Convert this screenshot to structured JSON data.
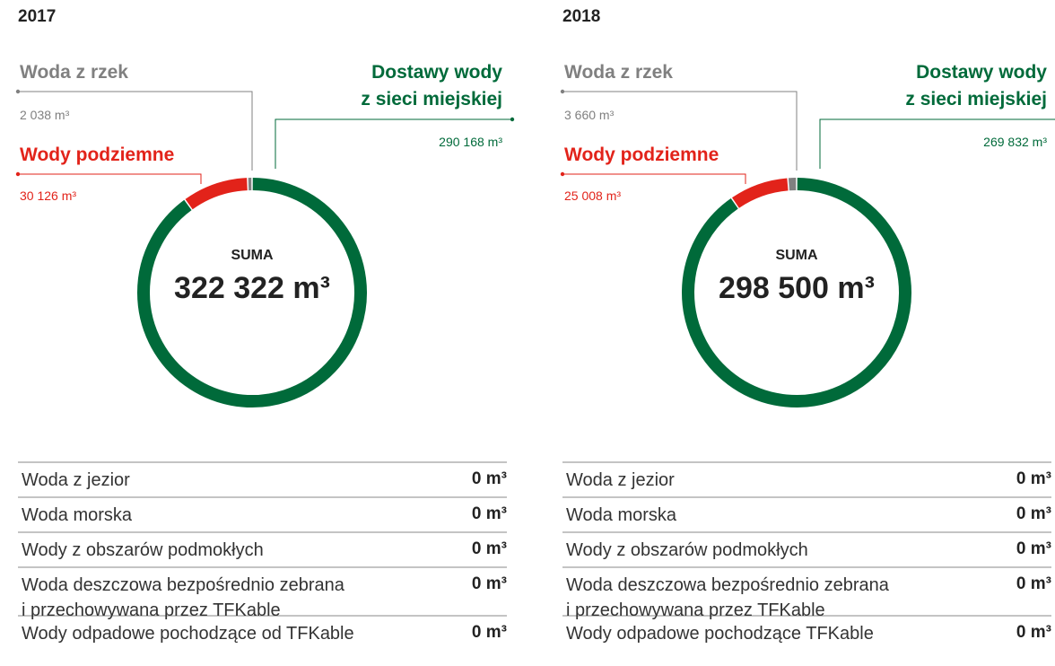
{
  "chart_data": [
    {
      "type": "pie",
      "title": "2017",
      "categories": [
        "Dostawy wody\nz sieci miejskiej",
        "Wody podziemne",
        "Woda z rzek"
      ],
      "values": [
        290168,
        30126,
        2038
      ],
      "value_labels": [
        "290 168 m³",
        "30 126 m³",
        "2 038 m³"
      ],
      "colors": [
        "#006a3a",
        "#e2231a",
        "#808080"
      ],
      "center_label": "SUMA",
      "total": {
        "value": 322322,
        "label": "322 322 m³"
      },
      "table": {
        "rows": [
          [
            "Woda z jezior",
            "0 m³"
          ],
          [
            "Woda morska",
            "0 m³"
          ],
          [
            "Wody z obszarów podmokłych",
            "0 m³"
          ],
          [
            "Woda deszczowa bezpośrednio zebrana\ni przechowywana przez TFKable",
            "0 m³"
          ],
          [
            "Wody odpadowe pochodzące od TFKable",
            "0 m³"
          ]
        ]
      }
    },
    {
      "type": "pie",
      "title": "2018",
      "categories": [
        "Dostawy wody\nz sieci miejskiej",
        "Wody podziemne",
        "Woda z rzek"
      ],
      "values": [
        269832,
        25008,
        3660
      ],
      "value_labels": [
        "269 832 m³",
        "25 008 m³",
        "3 660 m³"
      ],
      "colors": [
        "#006a3a",
        "#e2231a",
        "#808080"
      ],
      "center_label": "SUMA",
      "total": {
        "value": 298500,
        "label": "298 500 m³"
      },
      "table": {
        "rows": [
          [
            "Woda z jezior",
            "0 m³"
          ],
          [
            "Woda morska",
            "0 m³"
          ],
          [
            "Wody z obszarów podmokłych",
            "0 m³"
          ],
          [
            "Woda deszczowa bezpośrednio zebrana\ni przechowywana przez TFKable",
            "0 m³"
          ],
          [
            "Wody odpadowe pochodzące TFKable",
            "0 m³"
          ]
        ]
      }
    }
  ]
}
